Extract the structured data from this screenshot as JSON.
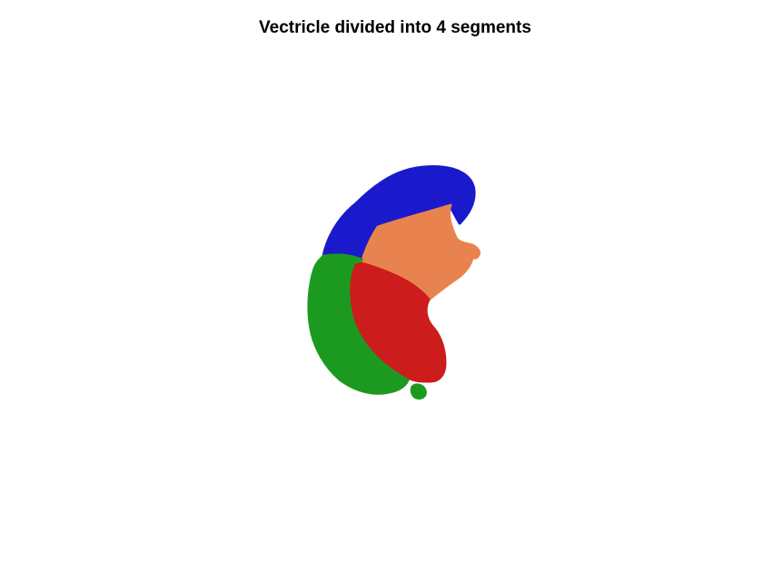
{
  "figure": {
    "title": "Vectricle divided into 4 segments"
  },
  "segments": [
    {
      "id": 1,
      "color": "#1a1acc"
    },
    {
      "id": 2,
      "color": "#e8834f"
    },
    {
      "id": 3,
      "color": "#1c9a1f"
    },
    {
      "id": 4,
      "color": "#cc1c1c"
    }
  ]
}
